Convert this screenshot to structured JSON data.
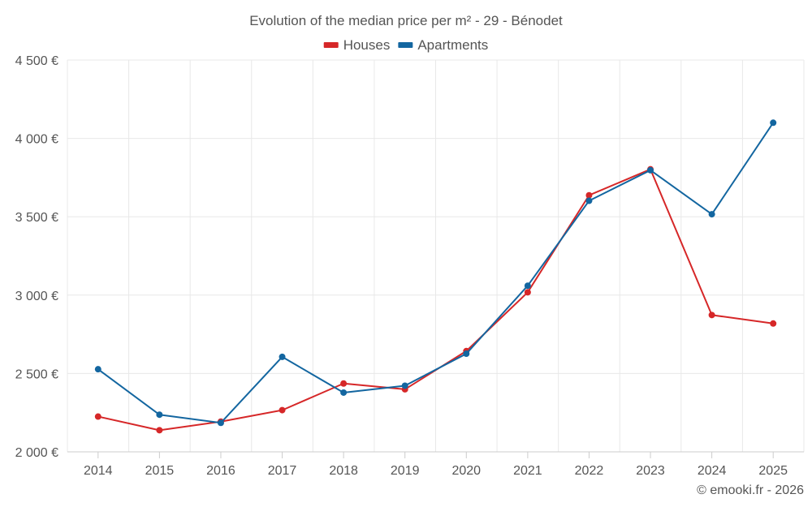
{
  "chart_data": {
    "type": "line",
    "title": "Evolution of the median price per m² - 29 - Bénodet",
    "categories": [
      "2014",
      "2015",
      "2016",
      "2017",
      "2018",
      "2019",
      "2020",
      "2021",
      "2022",
      "2023",
      "2024",
      "2025"
    ],
    "series": [
      {
        "name": "Houses",
        "color": "#d62728",
        "values": [
          2225,
          2138,
          2193,
          2266,
          2436,
          2399,
          2643,
          3018,
          3637,
          3803,
          2873,
          2819
        ]
      },
      {
        "name": "Apartments",
        "color": "#1366a0",
        "values": [
          2527,
          2237,
          2185,
          2606,
          2378,
          2422,
          2626,
          3060,
          3602,
          3797,
          3516,
          4100
        ]
      }
    ],
    "ylim": [
      2000,
      4500
    ],
    "yticks": [
      2000,
      2500,
      3000,
      3500,
      4000,
      4500
    ],
    "ytick_labels": [
      "2 000 €",
      "2 500 €",
      "3 000 €",
      "3 500 €",
      "4 000 €",
      "4 500 €"
    ],
    "xlabel": "",
    "ylabel": "",
    "legend_position": "top-center",
    "grid": true
  },
  "credit": "© emooki.fr - 2026"
}
